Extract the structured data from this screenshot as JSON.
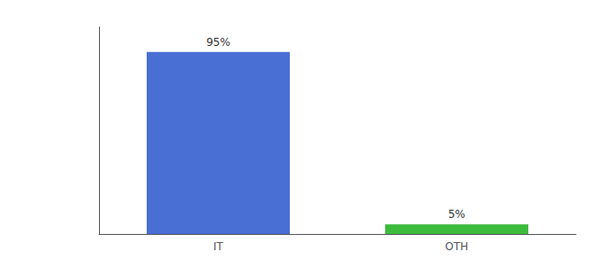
{
  "chart_data": {
    "type": "bar",
    "categories": [
      "IT",
      "OTH"
    ],
    "values": [
      95,
      5
    ],
    "value_labels": [
      "95%",
      "5%"
    ],
    "colors": [
      "#4a6fd4",
      "#3dbb3d"
    ],
    "ylim": [
      0,
      108
    ],
    "grid": false,
    "data_labels": true,
    "tick_labels": "x"
  }
}
